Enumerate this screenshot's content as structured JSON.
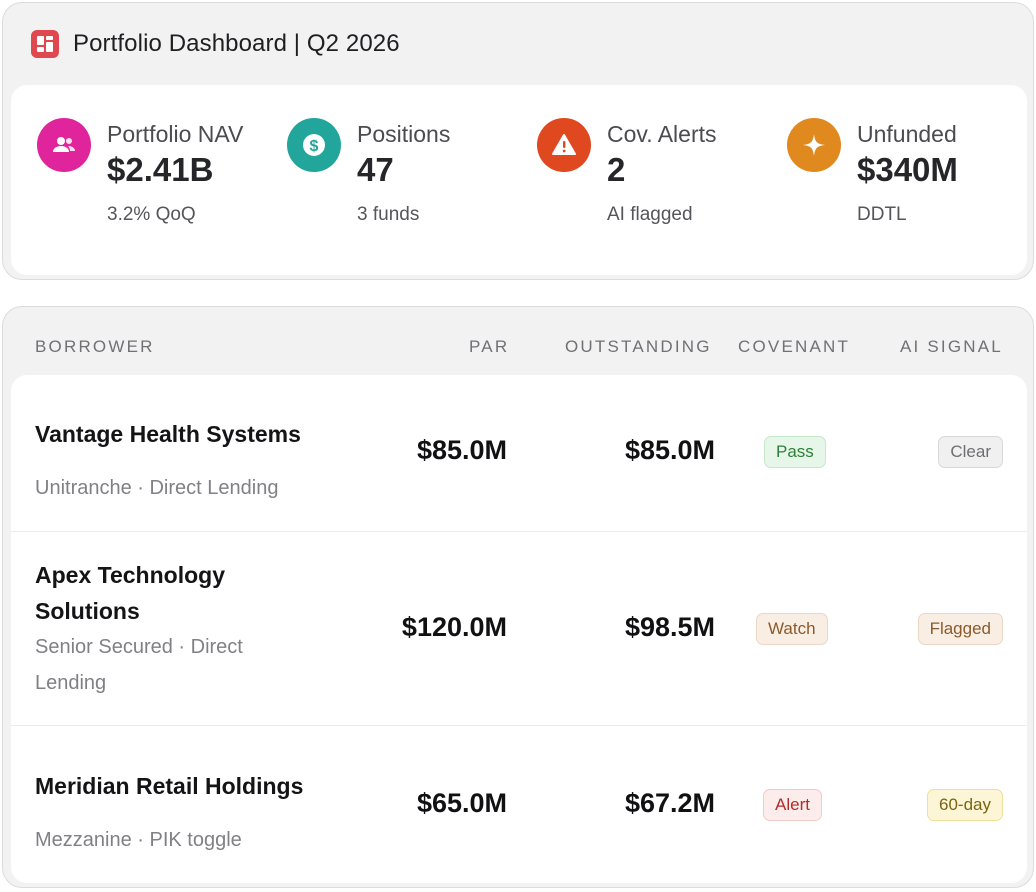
{
  "header": {
    "title": "Portfolio Dashboard | Q2 2026",
    "icon": "dashboard-grid-icon",
    "accent": "#e0484f"
  },
  "stats": [
    {
      "label": "Portfolio NAV",
      "value": "$2.41B",
      "sub": "3.2% QoQ",
      "icon": "users-icon",
      "color": "#e0249b"
    },
    {
      "label": "Positions",
      "value": "47",
      "sub": "3 funds",
      "icon": "dollar-icon",
      "color": "#22a59a"
    },
    {
      "label": "Cov. Alerts",
      "value": "2",
      "sub": "AI flagged",
      "icon": "warning-icon",
      "color": "#e0481f"
    },
    {
      "label": "Unfunded",
      "value": "$340M",
      "sub": "DDTL",
      "icon": "sparkle-icon",
      "color": "#e0891f"
    }
  ],
  "table": {
    "columns": {
      "borrower": "BORROWER",
      "par": "PAR",
      "outstanding": "OUTSTANDING",
      "covenant": "COVENANT",
      "ai_signal": "AI SIGNAL"
    },
    "rows": [
      {
        "borrower": "Vantage Health Systems",
        "meta": "Unitranche · Direct Lending",
        "par": "$85.0M",
        "outstanding": "$85.0M",
        "covenant": "Pass",
        "ai_signal": "Clear"
      },
      {
        "borrower": "Apex Technology Solutions",
        "meta": "Senior Secured · Direct Lending",
        "par": "$120.0M",
        "outstanding": "$98.5M",
        "covenant": "Watch",
        "ai_signal": "Flagged"
      },
      {
        "borrower": "Meridian Retail Holdings",
        "meta": "Mezzanine · PIK toggle",
        "par": "$65.0M",
        "outstanding": "$67.2M",
        "covenant": "Alert",
        "ai_signal": "60-day"
      }
    ]
  }
}
